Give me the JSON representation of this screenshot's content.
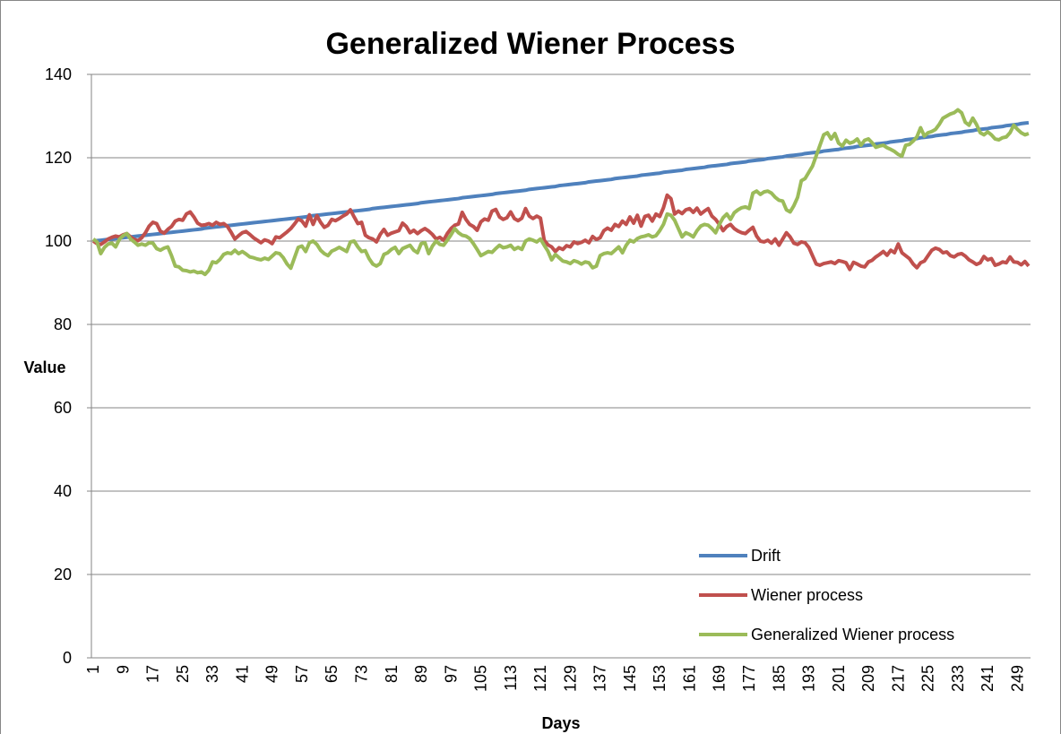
{
  "chart_data": {
    "type": "line",
    "title": "Generalized Wiener Process",
    "x_label": "Days",
    "y_label": "Value",
    "ylim": [
      0,
      140
    ],
    "yticks": [
      0,
      20,
      40,
      60,
      80,
      100,
      120,
      140
    ],
    "grid": true,
    "legend": "lower right",
    "categories": [
      1,
      null,
      null,
      null,
      null,
      null,
      null,
      null,
      9,
      null,
      null,
      null,
      null,
      null,
      null,
      null,
      17,
      null,
      null,
      null,
      null,
      null,
      null,
      null,
      25,
      null,
      null,
      null,
      null,
      null,
      null,
      null,
      33,
      null,
      null,
      null,
      null,
      null,
      null,
      null,
      41,
      null,
      null,
      null,
      null,
      null,
      null,
      null,
      49,
      null,
      null,
      null,
      null,
      null,
      null,
      null,
      57,
      null,
      null,
      null,
      null,
      null,
      null,
      null,
      65,
      null,
      null,
      null,
      null,
      null,
      null,
      null,
      73,
      null,
      null,
      null,
      null,
      null,
      null,
      null,
      81,
      null,
      null,
      null,
      null,
      null,
      null,
      null,
      89,
      null,
      null,
      null,
      null,
      null,
      null,
      null,
      97,
      null,
      null,
      null,
      null,
      null,
      null,
      null,
      105,
      null,
      null,
      null,
      null,
      null,
      null,
      null,
      113,
      null,
      null,
      null,
      null,
      null,
      null,
      null,
      121,
      null,
      null,
      null,
      null,
      null,
      null,
      null,
      129,
      null,
      null,
      null,
      null,
      null,
      null,
      null,
      137,
      null,
      null,
      null,
      null,
      null,
      null,
      null,
      145,
      null,
      null,
      null,
      null,
      null,
      null,
      null,
      153,
      null,
      null,
      null,
      null,
      null,
      null,
      null,
      161,
      null,
      null,
      null,
      null,
      null,
      null,
      null,
      169,
      null,
      null,
      null,
      null,
      null,
      null,
      null,
      177,
      null,
      null,
      null,
      null,
      null,
      null,
      null,
      185,
      null,
      null,
      null,
      null,
      null,
      null,
      null,
      193,
      null,
      null,
      null,
      null,
      null,
      null,
      null,
      201,
      null,
      null,
      null,
      null,
      null,
      null,
      null,
      209,
      null,
      null,
      null,
      null,
      null,
      null,
      null,
      217,
      null,
      null,
      null,
      null,
      null,
      null,
      null,
      225,
      null,
      null,
      null,
      null,
      null,
      null,
      null,
      233,
      null,
      null,
      null,
      null,
      null,
      null,
      null,
      241,
      null,
      null,
      null,
      null,
      null,
      null,
      null,
      249,
      null,
      null,
      null
    ],
    "series": [
      {
        "name": "Drift",
        "color": "#4f81bd",
        "values": [
          100.0,
          100.1,
          100.2,
          100.3,
          100.4,
          100.5,
          100.6,
          100.7,
          100.8,
          100.9,
          101.0,
          101.1,
          101.2,
          101.3,
          101.4,
          101.5,
          101.6,
          101.7,
          101.8,
          101.9,
          102.0,
          102.1,
          102.2,
          102.3,
          102.4,
          102.5,
          102.6,
          102.7,
          102.8,
          102.9,
          103.1,
          103.2,
          103.3,
          103.4,
          103.5,
          103.6,
          103.7,
          103.8,
          103.9,
          104.0,
          104.1,
          104.2,
          104.3,
          104.4,
          104.5,
          104.6,
          104.7,
          104.8,
          104.9,
          105.0,
          105.1,
          105.2,
          105.3,
          105.4,
          105.5,
          105.6,
          105.7,
          105.8,
          106.0,
          106.1,
          106.2,
          106.3,
          106.4,
          106.5,
          106.6,
          106.7,
          106.8,
          106.9,
          107.0,
          107.1,
          107.2,
          107.3,
          107.4,
          107.5,
          107.6,
          107.8,
          107.9,
          108.0,
          108.1,
          108.2,
          108.3,
          108.4,
          108.5,
          108.6,
          108.7,
          108.8,
          108.9,
          109.0,
          109.2,
          109.3,
          109.4,
          109.5,
          109.6,
          109.7,
          109.8,
          109.9,
          110.0,
          110.1,
          110.2,
          110.4,
          110.5,
          110.6,
          110.7,
          110.8,
          110.9,
          111.0,
          111.1,
          111.2,
          111.4,
          111.5,
          111.6,
          111.7,
          111.8,
          111.9,
          112.0,
          112.1,
          112.2,
          112.4,
          112.5,
          112.6,
          112.7,
          112.8,
          112.9,
          113.0,
          113.1,
          113.3,
          113.4,
          113.5,
          113.6,
          113.7,
          113.8,
          113.9,
          114.0,
          114.2,
          114.3,
          114.4,
          114.5,
          114.6,
          114.7,
          114.8,
          115.0,
          115.1,
          115.2,
          115.3,
          115.4,
          115.5,
          115.6,
          115.8,
          115.9,
          116.0,
          116.1,
          116.2,
          116.3,
          116.5,
          116.6,
          116.7,
          116.8,
          116.9,
          117.0,
          117.2,
          117.3,
          117.4,
          117.5,
          117.6,
          117.7,
          117.9,
          118.0,
          118.1,
          118.2,
          118.3,
          118.4,
          118.6,
          118.7,
          118.8,
          118.9,
          119.0,
          119.2,
          119.3,
          119.4,
          119.5,
          119.6,
          119.8,
          119.9,
          120.0,
          120.1,
          120.2,
          120.4,
          120.5,
          120.6,
          120.7,
          120.8,
          121.0,
          121.1,
          121.2,
          121.3,
          121.4,
          121.6,
          121.7,
          121.8,
          121.9,
          122.0,
          122.2,
          122.3,
          122.4,
          122.5,
          122.7,
          122.8,
          122.9,
          123.0,
          123.1,
          123.3,
          123.4,
          123.5,
          123.6,
          123.8,
          123.9,
          124.0,
          124.1,
          124.3,
          124.4,
          124.5,
          124.6,
          124.8,
          124.9,
          125.0,
          125.1,
          125.3,
          125.4,
          125.5,
          125.6,
          125.8,
          125.9,
          126.0,
          126.1,
          126.3,
          126.4,
          126.5,
          126.7,
          126.8,
          126.9,
          127.0,
          127.2,
          127.3,
          127.4,
          127.5,
          127.7,
          127.8,
          127.9,
          128.0,
          128.2,
          128.3,
          128.4
        ]
      },
      {
        "name": "Wiener process",
        "color": "#c0504d",
        "values": [
          100.0,
          99.4,
          99.2,
          99.8,
          100.5,
          100.9,
          101.2,
          101.0,
          101.5,
          101.8,
          101.0,
          100.4,
          100.1,
          100.8,
          102.0,
          103.6,
          104.5,
          104.2,
          102.4,
          101.9,
          102.8,
          103.5,
          104.8,
          105.2,
          105.0,
          106.5,
          107.0,
          105.8,
          104.3,
          103.8,
          103.9,
          104.2,
          103.8,
          104.5,
          104.0,
          104.2,
          103.5,
          102.1,
          100.5,
          101.3,
          102.0,
          102.3,
          101.6,
          100.8,
          100.2,
          99.6,
          100.3,
          100.0,
          99.4,
          101.0,
          100.8,
          101.5,
          102.2,
          103.0,
          104.1,
          105.3,
          104.8,
          103.6,
          106.3,
          104.0,
          106.1,
          104.5,
          103.3,
          103.8,
          105.2,
          104.9,
          105.4,
          106.0,
          106.5,
          107.5,
          105.8,
          104.2,
          104.5,
          101.4,
          100.8,
          100.5,
          99.8,
          101.6,
          102.8,
          101.4,
          101.9,
          102.2,
          102.5,
          104.3,
          103.5,
          102.0,
          102.6,
          101.8,
          102.5,
          103.0,
          102.4,
          101.6,
          100.5,
          100.9,
          100.2,
          101.8,
          103.0,
          103.8,
          104.1,
          106.9,
          105.2,
          104.0,
          103.5,
          102.6,
          104.6,
          105.3,
          105.0,
          107.2,
          107.6,
          105.8,
          105.2,
          105.6,
          107.0,
          105.4,
          104.9,
          105.5,
          107.8,
          106.0,
          105.4,
          106.0,
          105.5,
          100.2,
          99.1,
          98.6,
          97.5,
          98.4,
          98.0,
          98.9,
          98.6,
          99.8,
          99.4,
          99.7,
          100.2,
          99.6,
          101.1,
          100.4,
          100.8,
          102.5,
          103.1,
          102.6,
          104.0,
          103.5,
          104.8,
          104.0,
          105.8,
          104.3,
          106.2,
          103.6,
          105.9,
          106.2,
          104.8,
          106.5,
          105.9,
          108.0,
          111.0,
          110.2,
          106.5,
          107.2,
          106.6,
          107.5,
          107.8,
          106.9,
          107.9,
          106.5,
          107.2,
          107.8,
          106.0,
          105.2,
          104.0,
          102.5,
          103.5,
          104.0,
          103.0,
          102.4,
          102.0,
          101.8,
          102.6,
          103.3,
          101.2,
          100.0,
          99.8,
          100.2,
          99.5,
          100.5,
          99.0,
          100.5,
          102.0,
          101.0,
          99.5,
          99.2,
          99.8,
          99.6,
          98.5,
          96.5,
          94.5,
          94.2,
          94.6,
          94.8,
          95.0,
          94.6,
          95.3,
          95.1,
          94.8,
          93.2,
          94.9,
          94.5,
          94.0,
          93.8,
          95.0,
          95.4,
          96.2,
          96.8,
          97.5,
          96.6,
          97.8,
          97.2,
          99.3,
          97.2,
          96.5,
          95.8,
          94.5,
          93.6,
          94.8,
          95.2,
          96.5,
          97.8,
          98.3,
          98.0,
          97.2,
          97.4,
          96.5,
          96.2,
          96.8,
          97.0,
          96.4,
          95.5,
          95.0,
          94.4,
          94.8,
          96.3,
          95.5,
          95.8,
          94.2,
          94.5,
          95.0,
          94.8,
          96.2,
          95.0,
          94.9,
          94.3,
          95.1,
          94.0
        ]
      },
      {
        "name": "Generalized Wiener process",
        "color": "#9bbb59",
        "values": [
          100.5,
          99.8,
          97.0,
          98.5,
          99.3,
          99.5,
          98.6,
          100.4,
          101.3,
          101.8,
          100.5,
          99.8,
          99.0,
          99.3,
          99.0,
          99.6,
          99.5,
          98.2,
          97.8,
          98.3,
          98.6,
          96.5,
          94.0,
          93.8,
          93.0,
          92.9,
          92.6,
          92.8,
          92.4,
          92.6,
          92.0,
          93.0,
          95.0,
          94.8,
          95.6,
          96.8,
          97.2,
          97.0,
          97.8,
          97.0,
          97.5,
          96.9,
          96.2,
          96.0,
          95.7,
          95.5,
          95.9,
          95.6,
          96.4,
          97.2,
          97.0,
          96.0,
          94.5,
          93.5,
          96.0,
          98.5,
          98.8,
          97.5,
          99.6,
          100.0,
          99.2,
          97.8,
          97.0,
          96.5,
          97.6,
          98.0,
          98.5,
          98.0,
          97.5,
          99.8,
          100.0,
          98.6,
          97.5,
          97.7,
          95.8,
          94.5,
          94.0,
          94.6,
          96.8,
          97.2,
          98.0,
          98.5,
          97.0,
          98.2,
          98.6,
          99.0,
          97.8,
          97.2,
          99.4,
          99.6,
          97.0,
          98.8,
          100.0,
          99.2,
          99.0,
          100.2,
          101.5,
          103.0,
          102.0,
          101.4,
          101.2,
          100.6,
          99.4,
          98.0,
          96.5,
          97.0,
          97.5,
          97.3,
          98.2,
          99.0,
          98.4,
          98.6,
          99.0,
          98.0,
          98.5,
          98.0,
          100.0,
          100.5,
          100.2,
          99.8,
          100.5,
          99.0,
          97.6,
          95.5,
          96.8,
          96.0,
          95.2,
          95.0,
          94.6,
          95.3,
          95.0,
          94.5,
          95.0,
          94.8,
          93.6,
          94.0,
          96.5,
          97.0,
          97.2,
          97.0,
          97.8,
          98.6,
          97.2,
          99.0,
          100.2,
          99.8,
          100.6,
          101.0,
          101.2,
          101.5,
          101.0,
          101.3,
          102.5,
          104.0,
          106.5,
          106.2,
          105.0,
          103.0,
          101.0,
          102.0,
          101.6,
          101.0,
          102.5,
          103.6,
          104.0,
          103.8,
          103.0,
          102.0,
          104.0,
          105.6,
          106.5,
          105.2,
          106.8,
          107.5,
          108.0,
          108.2,
          107.8,
          111.5,
          112.0,
          111.2,
          111.8,
          112.0,
          111.5,
          110.5,
          109.8,
          109.6,
          107.5,
          107.0,
          108.5,
          110.5,
          114.5,
          115.0,
          116.5,
          118.0,
          120.5,
          123.0,
          125.5,
          126.0,
          124.5,
          125.8,
          123.5,
          122.8,
          124.2,
          123.5,
          123.8,
          124.5,
          123.0,
          124.2,
          124.5,
          123.6,
          122.5,
          122.8,
          123.0,
          122.4,
          122.0,
          121.5,
          120.8,
          120.4,
          123.0,
          123.2,
          124.0,
          125.0,
          127.2,
          125.2,
          126.0,
          126.3,
          126.8,
          128.0,
          129.5,
          130.0,
          130.5,
          130.8,
          131.5,
          130.8,
          128.5,
          127.8,
          129.5,
          128.0,
          126.0,
          125.5,
          126.2,
          125.5,
          124.5,
          124.3,
          124.8,
          125.0,
          126.0,
          127.8,
          126.8,
          126.0,
          125.5,
          125.8
        ]
      }
    ]
  }
}
